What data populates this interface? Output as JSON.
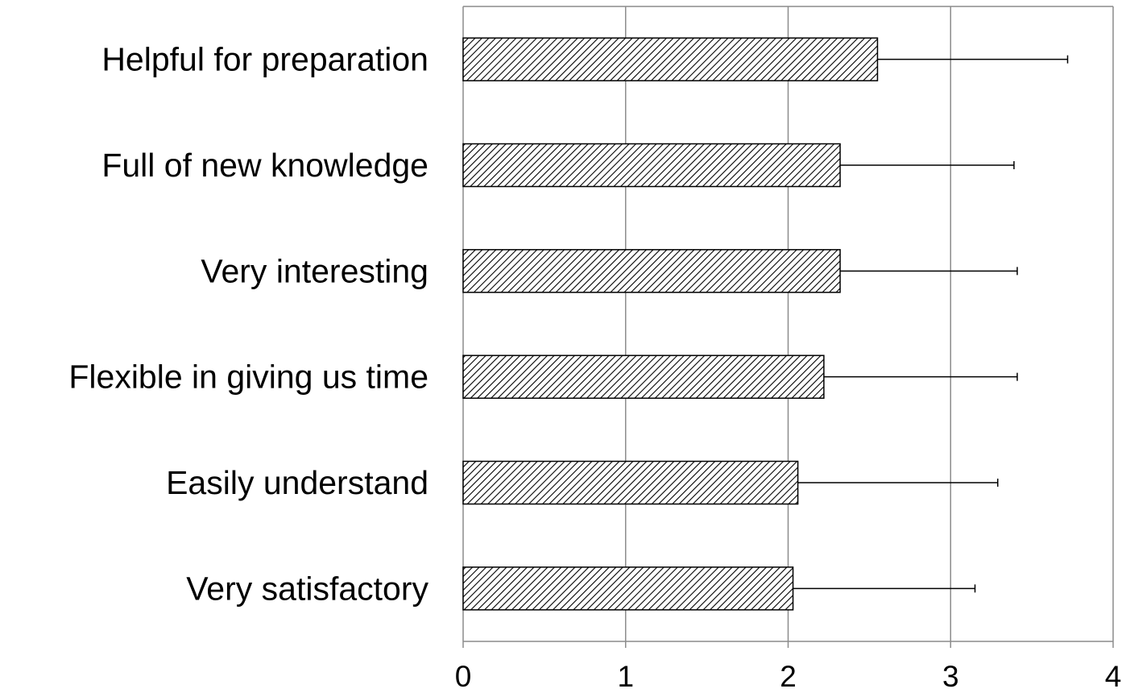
{
  "chart_data": {
    "type": "bar",
    "orientation": "horizontal",
    "title": "",
    "xlabel": "",
    "ylabel": "",
    "categories": [
      "Helpful for preparation",
      "Full of new knowledge",
      "Very interesting",
      "Flexible in giving us time",
      "Easily understand",
      "Very satisfactory"
    ],
    "series": [
      {
        "values": [
          2.55,
          2.32,
          2.32,
          2.22,
          2.06,
          2.03
        ],
        "error_plus": [
          1.17,
          1.07,
          1.09,
          1.19,
          1.23,
          1.12
        ],
        "fill": "diagonal-hatch",
        "color": "#000000"
      }
    ],
    "xlim": [
      0,
      4
    ],
    "x_ticks": [
      "0",
      "1",
      "2",
      "3",
      "4"
    ],
    "grid": "vertical",
    "legend": "none",
    "colors": {
      "bar_stroke": "#000000",
      "hatch": "#000000",
      "grid": "#8c8c8c",
      "axis": "#8c8c8c",
      "background": "#ffffff"
    }
  }
}
